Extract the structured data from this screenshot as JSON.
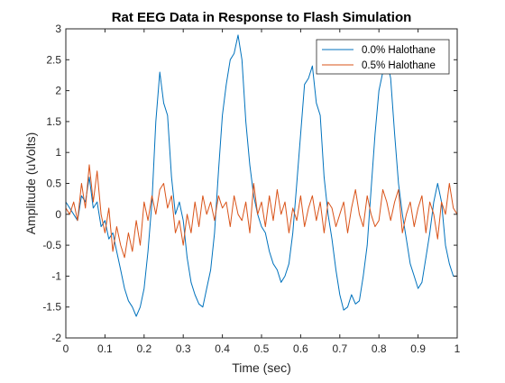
{
  "chart_data": {
    "type": "line",
    "title": "Rat EEG Data in Response to Flash Simulation",
    "xlabel": "Time (sec)",
    "ylabel": "Amplitude (uVolts)",
    "xlim": [
      0,
      1
    ],
    "ylim": [
      -2,
      3
    ],
    "x_ticks": [
      0,
      0.1,
      0.2,
      0.3,
      0.4,
      0.5,
      0.6,
      0.7,
      0.8,
      0.9,
      1
    ],
    "x_tick_labels": [
      "0",
      "0.1",
      "0.2",
      "0.3",
      "0.4",
      "0.5",
      "0.6",
      "0.7",
      "0.8",
      "0.9",
      "1"
    ],
    "y_ticks": [
      -2,
      -1.5,
      -1,
      -0.5,
      0,
      0.5,
      1,
      1.5,
      2,
      2.5,
      3
    ],
    "y_tick_labels": [
      "-2",
      "-1.5",
      "-1",
      "-0.5",
      "0",
      "0.5",
      "1",
      "1.5",
      "2",
      "2.5",
      "3"
    ],
    "grid": false,
    "legend_position": "top-right",
    "series": [
      {
        "name": "0.0% Halothane",
        "color": "#0072BD",
        "x": [
          0,
          0.01,
          0.02,
          0.03,
          0.04,
          0.05,
          0.06,
          0.07,
          0.08,
          0.09,
          0.1,
          0.11,
          0.12,
          0.13,
          0.14,
          0.15,
          0.16,
          0.17,
          0.18,
          0.19,
          0.2,
          0.21,
          0.22,
          0.23,
          0.24,
          0.25,
          0.26,
          0.27,
          0.28,
          0.29,
          0.3,
          0.31,
          0.32,
          0.33,
          0.34,
          0.35,
          0.36,
          0.37,
          0.38,
          0.39,
          0.4,
          0.41,
          0.42,
          0.43,
          0.44,
          0.45,
          0.46,
          0.47,
          0.48,
          0.49,
          0.5,
          0.51,
          0.52,
          0.53,
          0.54,
          0.55,
          0.56,
          0.57,
          0.58,
          0.59,
          0.6,
          0.61,
          0.62,
          0.63,
          0.64,
          0.65,
          0.66,
          0.67,
          0.68,
          0.69,
          0.7,
          0.71,
          0.72,
          0.73,
          0.74,
          0.75,
          0.76,
          0.77,
          0.78,
          0.79,
          0.8,
          0.81,
          0.82,
          0.83,
          0.84,
          0.85,
          0.86,
          0.87,
          0.88,
          0.89,
          0.9,
          0.91,
          0.92,
          0.93,
          0.94,
          0.95,
          0.96,
          0.97,
          0.98,
          0.99,
          1.0
        ],
        "y": [
          0.2,
          0.1,
          0.0,
          -0.1,
          0.3,
          0.2,
          0.6,
          0.1,
          0.2,
          -0.2,
          -0.1,
          -0.4,
          -0.3,
          -0.6,
          -0.9,
          -1.2,
          -1.4,
          -1.5,
          -1.65,
          -1.5,
          -1.2,
          -0.6,
          0.2,
          1.5,
          2.3,
          1.8,
          1.6,
          0.6,
          0.0,
          0.2,
          -0.1,
          -0.7,
          -1.1,
          -1.3,
          -1.45,
          -1.5,
          -1.2,
          -0.9,
          -0.3,
          0.7,
          1.6,
          2.1,
          2.5,
          2.6,
          2.9,
          2.5,
          1.5,
          0.8,
          0.3,
          0.0,
          -0.2,
          -0.3,
          -0.6,
          -0.8,
          -0.9,
          -1.1,
          -1.0,
          -0.8,
          -0.3,
          0.5,
          1.3,
          2.1,
          2.2,
          2.4,
          1.8,
          1.6,
          0.6,
          0.0,
          -0.4,
          -0.9,
          -1.3,
          -1.55,
          -1.5,
          -1.3,
          -1.45,
          -1.4,
          -1.0,
          -0.5,
          0.4,
          1.3,
          2.0,
          2.3,
          2.5,
          2.2,
          1.3,
          0.5,
          0.0,
          -0.4,
          -0.8,
          -1.0,
          -1.2,
          -1.1,
          -0.7,
          -0.3,
          0.2,
          0.5,
          0.2,
          -0.5,
          -0.8,
          -1.0,
          -1.0
        ]
      },
      {
        "name": "0.5% Halothane",
        "color": "#D95319",
        "x": [
          0,
          0.01,
          0.02,
          0.03,
          0.04,
          0.05,
          0.06,
          0.07,
          0.08,
          0.09,
          0.1,
          0.11,
          0.12,
          0.13,
          0.14,
          0.15,
          0.16,
          0.17,
          0.18,
          0.19,
          0.2,
          0.21,
          0.22,
          0.23,
          0.24,
          0.25,
          0.26,
          0.27,
          0.28,
          0.29,
          0.3,
          0.31,
          0.32,
          0.33,
          0.34,
          0.35,
          0.36,
          0.37,
          0.38,
          0.39,
          0.4,
          0.41,
          0.42,
          0.43,
          0.44,
          0.45,
          0.46,
          0.47,
          0.48,
          0.49,
          0.5,
          0.51,
          0.52,
          0.53,
          0.54,
          0.55,
          0.56,
          0.57,
          0.58,
          0.59,
          0.6,
          0.61,
          0.62,
          0.63,
          0.64,
          0.65,
          0.66,
          0.67,
          0.68,
          0.69,
          0.7,
          0.71,
          0.72,
          0.73,
          0.74,
          0.75,
          0.76,
          0.77,
          0.78,
          0.79,
          0.8,
          0.81,
          0.82,
          0.83,
          0.84,
          0.85,
          0.86,
          0.87,
          0.88,
          0.89,
          0.9,
          0.91,
          0.92,
          0.93,
          0.94,
          0.95,
          0.96,
          0.97,
          0.98,
          0.99,
          1.0
        ],
        "y": [
          0.1,
          0.0,
          0.2,
          -0.1,
          0.5,
          0.1,
          0.8,
          0.2,
          0.7,
          0.0,
          -0.3,
          0.1,
          -0.6,
          -0.2,
          -0.5,
          -0.7,
          -0.3,
          -0.6,
          -0.1,
          -0.5,
          0.2,
          -0.1,
          0.3,
          0.0,
          0.4,
          0.5,
          0.1,
          0.3,
          -0.3,
          -0.1,
          -0.5,
          0.0,
          -0.3,
          0.2,
          -0.2,
          0.3,
          0.0,
          0.2,
          -0.1,
          0.3,
          0.1,
          0.2,
          -0.2,
          0.3,
          0.0,
          -0.1,
          0.2,
          -0.3,
          0.5,
          0.0,
          0.2,
          -0.2,
          0.3,
          -0.1,
          0.4,
          0.0,
          0.2,
          -0.3,
          0.1,
          -0.1,
          0.3,
          -0.2,
          0.1,
          0.3,
          -0.1,
          0.2,
          -0.3,
          0.2,
          0.1,
          -0.2,
          0.0,
          0.2,
          -0.3,
          0.1,
          0.4,
          0.0,
          -0.2,
          0.3,
          0.0,
          -0.2,
          -0.1,
          0.4,
          0.2,
          -0.1,
          0.2,
          0.4,
          -0.3,
          0.0,
          0.2,
          -0.2,
          0.1,
          0.3,
          -0.3,
          0.2,
          0.0,
          -0.4,
          0.2,
          0.0,
          0.5,
          0.1,
          0.0
        ]
      }
    ]
  }
}
